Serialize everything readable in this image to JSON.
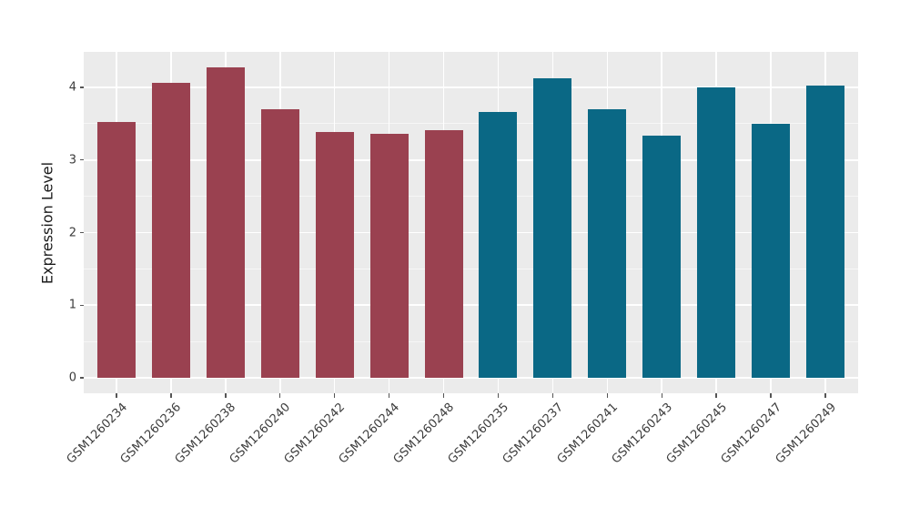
{
  "chart_data": {
    "type": "bar",
    "title": "",
    "ylabel": "Expression Level",
    "xlabel": "",
    "categories": [
      "GSM1260234",
      "GSM1260236",
      "GSM1260238",
      "GSM1260240",
      "GSM1260242",
      "GSM1260244",
      "GSM1260248",
      "GSM1260235",
      "GSM1260237",
      "GSM1260241",
      "GSM1260243",
      "GSM1260245",
      "GSM1260247",
      "GSM1260249"
    ],
    "values": [
      3.53,
      4.06,
      4.28,
      3.7,
      3.39,
      3.36,
      3.41,
      3.66,
      4.13,
      3.7,
      3.33,
      4.0,
      3.5,
      4.03
    ],
    "bar_groups": [
      {
        "name": "left-group",
        "color": "#9A4150",
        "categories": [
          "GSM1260234",
          "GSM1260236",
          "GSM1260238",
          "GSM1260240",
          "GSM1260242",
          "GSM1260244",
          "GSM1260248"
        ]
      },
      {
        "name": "right-group",
        "color": "#0A6885",
        "categories": [
          "GSM1260235",
          "GSM1260237",
          "GSM1260241",
          "GSM1260243",
          "GSM1260245",
          "GSM1260247",
          "GSM1260249"
        ]
      }
    ],
    "yticks": [
      "0",
      "1",
      "2",
      "3",
      "4"
    ],
    "ytick_values": [
      0,
      1,
      2,
      3,
      4
    ],
    "ylim": [
      -0.214,
      4.49
    ],
    "minor_grid_values": [
      0.5,
      1.5,
      2.5,
      3.5
    ],
    "grid": "on",
    "legend": "none",
    "panel_bg": "#EBEBEB",
    "grid_color": "#FFFFFF",
    "x_label_rotation_deg": 45
  }
}
